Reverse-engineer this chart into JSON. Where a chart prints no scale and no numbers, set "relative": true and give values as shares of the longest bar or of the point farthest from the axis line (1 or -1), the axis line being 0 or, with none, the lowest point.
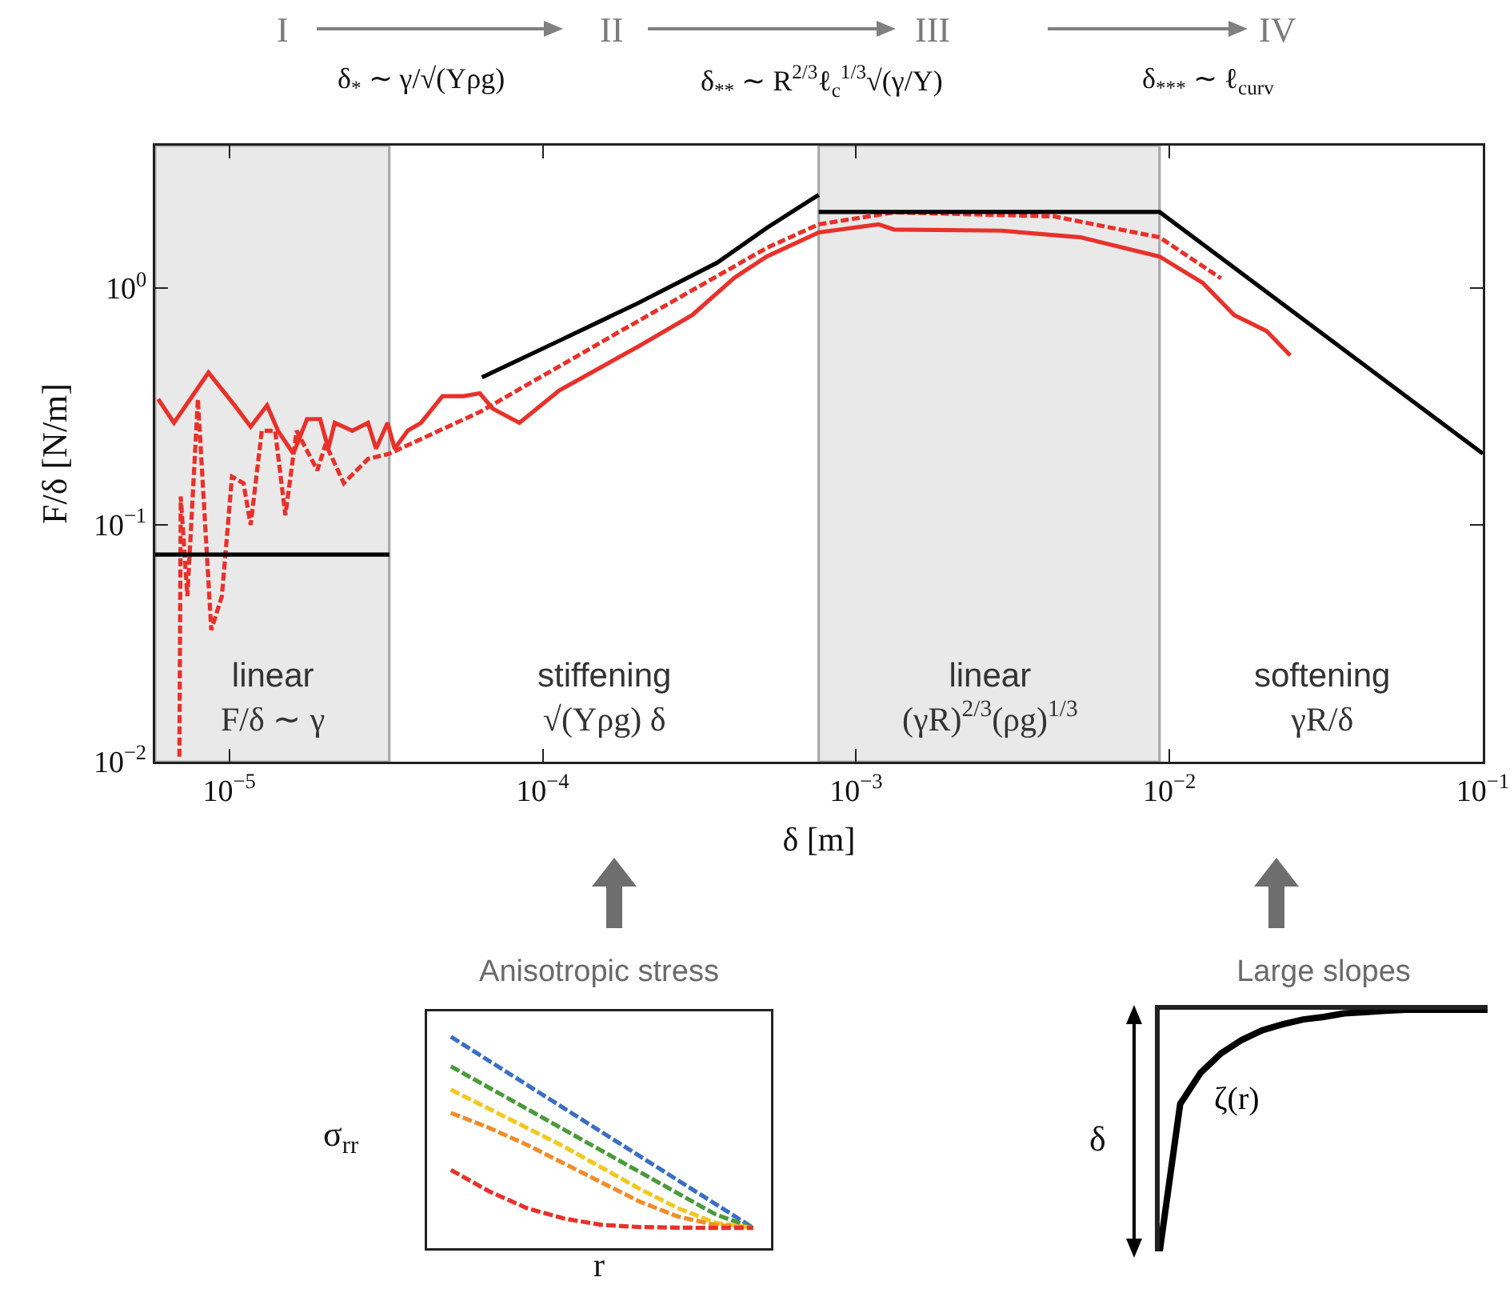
{
  "chart_data": [
    {
      "type": "line",
      "xlabel": "δ [m]",
      "ylabel": "F/δ [N/m]",
      "log": "xy",
      "xlim": [
        5.8e-06,
        0.1
      ],
      "ylim": [
        0.01,
        4
      ],
      "xticks": [
        {
          "value": 1e-05,
          "label": "10$^{−5}$"
        },
        {
          "value": 0.0001,
          "label": "10$^{−4}$"
        },
        {
          "value": 0.001,
          "label": "10$^{−3}$"
        },
        {
          "value": 0.01,
          "label": "10$^{−2}$"
        },
        {
          "value": 0.1,
          "label": "10$^{−1}$"
        }
      ],
      "yticks": [
        {
          "value": 0.01,
          "label": "10$^{−2}$"
        },
        {
          "value": 0.1,
          "label": "10$^{−1}$"
        },
        {
          "value": 1,
          "label": "10$^{0}$"
        }
      ],
      "bands": [
        {
          "axis": "x",
          "from": 5.8e-06,
          "to": 3.24e-05,
          "color": "#e9e9e9"
        },
        {
          "axis": "x",
          "from": 0.00076,
          "to": 0.0093,
          "color": "#e9e9e9"
        }
      ],
      "series": [
        {
          "color": "#e8312a",
          "line_style": "solid",
          "x": [
            5.93e-06,
            6.66e-06,
            8.58e-06,
            1.04e-05,
            1.17e-05,
            1.32e-05,
            1.43e-05,
            1.6e-05,
            1.77e-05,
            1.95e-05,
            2.07e-05,
            2.17e-05,
            2.47e-05,
            2.77e-05,
            2.94e-05,
            3.2e-05,
            3.37e-05,
            3.71e-05,
            4.09e-05,
            4.79e-05,
            5.6e-05,
            6.3e-05,
            6.93e-05,
            8.43e-05,
            0.000113,
            0.000203,
            0.0003,
            0.00041,
            0.000519,
            0.00076,
            0.00118,
            0.00132,
            0.0029,
            0.0052,
            0.0093,
            0.0128,
            0.0161,
            0.0204,
            0.0243
          ],
          "values": [
            0.34,
            0.27,
            0.44,
            0.32,
            0.26,
            0.32,
            0.25,
            0.2,
            0.28,
            0.28,
            0.21,
            0.27,
            0.25,
            0.27,
            0.21,
            0.27,
            0.21,
            0.25,
            0.27,
            0.35,
            0.35,
            0.36,
            0.31,
            0.27,
            0.37,
            0.57,
            0.77,
            1.11,
            1.36,
            1.72,
            1.86,
            1.77,
            1.75,
            1.64,
            1.36,
            1.05,
            0.77,
            0.66,
            0.52
          ]
        },
        {
          "color": "#e8312a",
          "line_style": "dashed",
          "x": [
            6.93e-06,
            7e-06,
            7.35e-06,
            7.94e-06,
            8.76e-06,
            9.47e-06,
            1.02e-05,
            1.11e-05,
            1.17e-05,
            1.27e-05,
            1.4e-05,
            1.51e-05,
            1.64e-05,
            1.91e-05,
            2.03e-05,
            2.32e-05,
            2.77e-05,
            3.24e-05,
            6.3e-05,
            0.000203,
            0.000519,
            0.00076,
            0.00132,
            0.00428,
            0.0093,
            0.0146
          ],
          "values": [
            0.0105,
            0.132,
            0.05,
            0.34,
            0.036,
            0.05,
            0.16,
            0.15,
            0.1,
            0.25,
            0.25,
            0.11,
            0.25,
            0.17,
            0.22,
            0.15,
            0.19,
            0.2,
            0.3,
            0.73,
            1.48,
            1.86,
            2.09,
            2.01,
            1.64,
            1.1
          ]
        },
        {
          "color": "#000000",
          "line_style": "solid",
          "x": [
            5.8e-06,
            3.24e-05
          ],
          "values": [
            0.075,
            0.075
          ]
        },
        {
          "color": "#000000",
          "line_style": "solid",
          "x": [
            6.4e-05,
            0.00011,
            0.0002,
            0.00036,
            0.00052,
            0.00076
          ],
          "values": [
            0.42,
            0.59,
            0.86,
            1.28,
            1.8,
            2.48
          ]
        },
        {
          "color": "#000000",
          "line_style": "solid",
          "x": [
            0.00076,
            0.0093,
            0.1
          ],
          "values": [
            2.1,
            2.1,
            0.2
          ]
        }
      ],
      "annotations": [
        "I",
        "II",
        "III",
        "IV",
        "δ$_{*}$ ∼ γ/√(Yρg)",
        "δ$_{**}$ ∼ R$^{2/3}$ℓ$_{c}$$^{1/3}$√(γ/Y)",
        "δ$_{***}$ ∼ ℓ$_{curv}$",
        "linear\nF/δ ∼ γ",
        "stiffening\n√(Yρg) δ",
        "linear\n(γR)$^{2/3}$(ρg)$^{1/3}$",
        "softening\nγR/δ"
      ]
    },
    {
      "type": "line",
      "title": "Anisotropic stress",
      "xlabel": "r",
      "ylabel": "σ$_{rr}$",
      "relative": true,
      "line_style": "dashed",
      "categories": [
        null,
        null,
        null,
        null,
        null,
        null,
        null,
        null,
        null
      ],
      "series": [
        {
          "color": "#3a6fc4",
          "values": [
            1,
            0.887,
            0.774,
            0.661,
            0.548,
            0.435,
            0.322,
            0.209,
            0.096
          ]
        },
        {
          "color": "#4a9a3a",
          "values": [
            0.86,
            0.76,
            0.66,
            0.56,
            0.46,
            0.36,
            0.26,
            0.16,
            0.096
          ]
        },
        {
          "color": "#f2c81d",
          "values": [
            0.75,
            0.66,
            0.57,
            0.48,
            0.38,
            0.28,
            0.19,
            0.12,
            0.096
          ]
        },
        {
          "color": "#f28c28",
          "values": [
            0.64,
            0.57,
            0.49,
            0.4,
            0.31,
            0.22,
            0.15,
            0.11,
            0.096
          ]
        },
        {
          "color": "#e8312a",
          "values": [
            0.37,
            0.27,
            0.19,
            0.14,
            0.11,
            0.1,
            0.097,
            0.096,
            0.096
          ]
        }
      ]
    },
    {
      "type": "line",
      "title": "Large slopes",
      "ylabel": "δ",
      "relative": true,
      "line_style": "solid",
      "categories": [
        null,
        null,
        null,
        null,
        null,
        null,
        null,
        null,
        null,
        null,
        null,
        null,
        null,
        null,
        null,
        null,
        null
      ],
      "series": [
        {
          "name": "ζ(r)",
          "color": "#000000",
          "values": [
            0,
            0.61,
            0.74,
            0.82,
            0.875,
            0.915,
            0.94,
            0.96,
            0.97,
            0.985,
            0.99,
            0.996,
            1,
            1,
            1,
            1,
            1
          ]
        }
      ]
    }
  ]
}
